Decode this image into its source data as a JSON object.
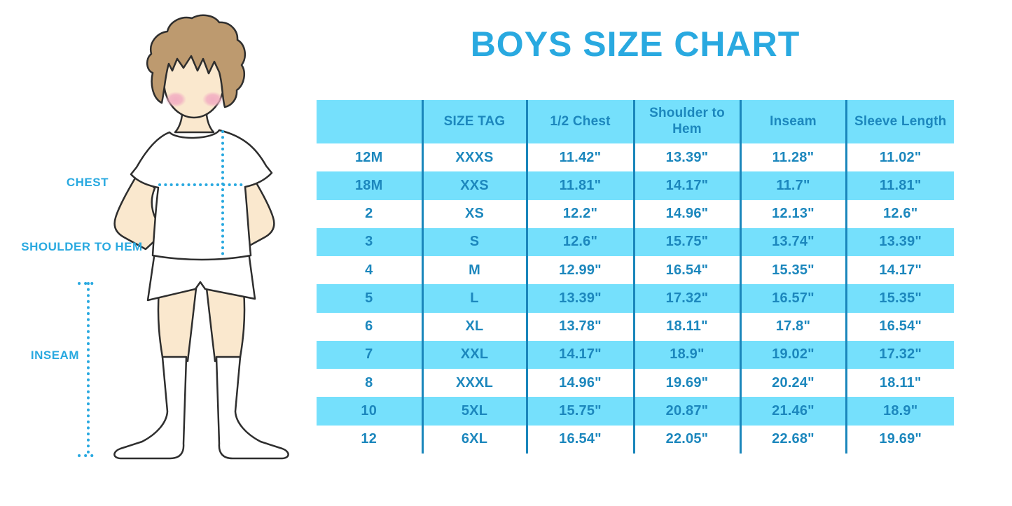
{
  "chart_data": {
    "type": "table",
    "title": "BOYS SIZE CHART",
    "columns": [
      "",
      "SIZE TAG",
      "1/2 Chest",
      "Shoulder to Hem",
      "Inseam",
      "Sleeve Length"
    ],
    "rows": [
      [
        "12M",
        "XXXS",
        "11.42\"",
        "13.39\"",
        "11.28\"",
        "11.02\""
      ],
      [
        "18M",
        "XXS",
        "11.81\"",
        "14.17\"",
        "11.7\"",
        "11.81\""
      ],
      [
        "2",
        "XS",
        "12.2\"",
        "14.96\"",
        "12.13\"",
        "12.6\""
      ],
      [
        "3",
        "S",
        "12.6\"",
        "15.75\"",
        "13.74\"",
        "13.39\""
      ],
      [
        "4",
        "M",
        "12.99\"",
        "16.54\"",
        "15.35\"",
        "14.17\""
      ],
      [
        "5",
        "L",
        "13.39\"",
        "17.32\"",
        "16.57\"",
        "15.35\""
      ],
      [
        "6",
        "XL",
        "13.78\"",
        "18.11\"",
        "17.8\"",
        "16.54\""
      ],
      [
        "7",
        "XXL",
        "14.17\"",
        "18.9\"",
        "19.02\"",
        "17.32\""
      ],
      [
        "8",
        "XXXL",
        "14.96\"",
        "19.69\"",
        "20.24\"",
        "18.11\""
      ],
      [
        "10",
        "5XL",
        "15.75\"",
        "20.87\"",
        "21.46\"",
        "18.9\""
      ],
      [
        "12",
        "6XL",
        "16.54\"",
        "22.05\"",
        "22.68\"",
        "19.69\""
      ]
    ],
    "layout": {
      "stripe_pattern": "alternating cyan/white, header cyan",
      "grid": "vertical dividers only"
    }
  },
  "illustration": {
    "labels": {
      "chest": "CHEST",
      "shoulder_to_hem": "SHOULDER TO HEM",
      "inseam": "INSEAM"
    }
  },
  "colors": {
    "accent": "#29A9E0",
    "stripe_cyan": "#75E0FC",
    "divider_blue": "#1A86BB",
    "cell_text": "#1C87BD",
    "hair_brown": "#BD9A6F",
    "skin": "#FAE8CE",
    "blush_pink": "#F2AFC2",
    "outline": "#2E2E2E"
  }
}
